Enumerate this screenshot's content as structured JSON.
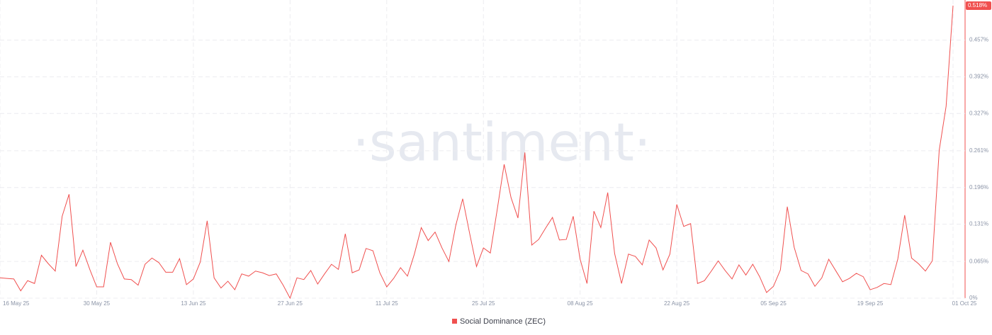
{
  "chart_data": {
    "type": "line",
    "watermark": "·santiment·",
    "x": [
      "2025-05-16",
      "2025-05-17",
      "2025-05-18",
      "2025-05-19",
      "2025-05-20",
      "2025-05-21",
      "2025-05-22",
      "2025-05-23",
      "2025-05-24",
      "2025-05-25",
      "2025-05-26",
      "2025-05-27",
      "2025-05-28",
      "2025-05-29",
      "2025-05-30",
      "2025-05-31",
      "2025-06-01",
      "2025-06-02",
      "2025-06-03",
      "2025-06-04",
      "2025-06-05",
      "2025-06-06",
      "2025-06-07",
      "2025-06-08",
      "2025-06-09",
      "2025-06-10",
      "2025-06-11",
      "2025-06-12",
      "2025-06-13",
      "2025-06-14",
      "2025-06-15",
      "2025-06-16",
      "2025-06-17",
      "2025-06-18",
      "2025-06-19",
      "2025-06-20",
      "2025-06-21",
      "2025-06-22",
      "2025-06-23",
      "2025-06-24",
      "2025-06-25",
      "2025-06-26",
      "2025-06-27",
      "2025-06-28",
      "2025-06-29",
      "2025-06-30",
      "2025-07-01",
      "2025-07-02",
      "2025-07-03",
      "2025-07-04",
      "2025-07-05",
      "2025-07-06",
      "2025-07-07",
      "2025-07-08",
      "2025-07-09",
      "2025-07-10",
      "2025-07-11",
      "2025-07-12",
      "2025-07-13",
      "2025-07-14",
      "2025-07-15",
      "2025-07-16",
      "2025-07-17",
      "2025-07-18",
      "2025-07-19",
      "2025-07-20",
      "2025-07-21",
      "2025-07-22",
      "2025-07-23",
      "2025-07-24",
      "2025-07-25",
      "2025-07-26",
      "2025-07-27",
      "2025-07-28",
      "2025-07-29",
      "2025-07-30",
      "2025-07-31",
      "2025-08-01",
      "2025-08-02",
      "2025-08-03",
      "2025-08-04",
      "2025-08-05",
      "2025-08-06",
      "2025-08-07",
      "2025-08-08",
      "2025-08-09",
      "2025-08-10",
      "2025-08-11",
      "2025-08-12",
      "2025-08-13",
      "2025-08-14",
      "2025-08-15",
      "2025-08-16",
      "2025-08-17",
      "2025-08-18",
      "2025-08-19",
      "2025-08-20",
      "2025-08-21",
      "2025-08-22",
      "2025-08-23",
      "2025-08-24",
      "2025-08-25",
      "2025-08-26",
      "2025-08-27",
      "2025-08-28",
      "2025-08-29",
      "2025-08-30",
      "2025-08-31",
      "2025-09-01",
      "2025-09-02",
      "2025-09-03",
      "2025-09-04",
      "2025-09-05",
      "2025-09-06",
      "2025-09-07",
      "2025-09-08",
      "2025-09-09",
      "2025-09-10",
      "2025-09-11",
      "2025-09-12",
      "2025-09-13",
      "2025-09-14",
      "2025-09-15",
      "2025-09-16",
      "2025-09-17",
      "2025-09-18",
      "2025-09-19",
      "2025-09-20",
      "2025-09-21",
      "2025-09-22",
      "2025-09-23",
      "2025-09-24",
      "2025-09-25",
      "2025-09-26",
      "2025-09-27",
      "2025-09-28",
      "2025-09-29",
      "2025-09-30",
      "2025-10-01"
    ],
    "series": [
      {
        "name": "Social Dominance (ZEC)",
        "color": "#f0504f",
        "values": [
          0.036,
          0.035,
          0.034,
          0.013,
          0.031,
          0.026,
          0.076,
          0.061,
          0.048,
          0.145,
          0.184,
          0.056,
          0.085,
          0.051,
          0.02,
          0.02,
          0.099,
          0.061,
          0.034,
          0.033,
          0.023,
          0.06,
          0.071,
          0.063,
          0.046,
          0.046,
          0.07,
          0.024,
          0.034,
          0.064,
          0.137,
          0.036,
          0.018,
          0.03,
          0.015,
          0.043,
          0.039,
          0.048,
          0.045,
          0.04,
          0.043,
          0.023,
          0.0,
          0.036,
          0.033,
          0.049,
          0.025,
          0.043,
          0.06,
          0.051,
          0.114,
          0.045,
          0.05,
          0.088,
          0.084,
          0.045,
          0.02,
          0.035,
          0.054,
          0.039,
          0.078,
          0.125,
          0.102,
          0.117,
          0.089,
          0.065,
          0.129,
          0.176,
          0.115,
          0.056,
          0.089,
          0.08,
          0.157,
          0.237,
          0.178,
          0.142,
          0.258,
          0.094,
          0.104,
          0.124,
          0.143,
          0.103,
          0.104,
          0.145,
          0.069,
          0.026,
          0.154,
          0.125,
          0.187,
          0.079,
          0.026,
          0.078,
          0.074,
          0.059,
          0.103,
          0.089,
          0.05,
          0.078,
          0.166,
          0.127,
          0.132,
          0.026,
          0.031,
          0.048,
          0.066,
          0.049,
          0.034,
          0.059,
          0.041,
          0.06,
          0.038,
          0.01,
          0.021,
          0.05,
          0.162,
          0.09,
          0.049,
          0.043,
          0.021,
          0.036,
          0.069,
          0.049,
          0.029,
          0.035,
          0.044,
          0.038,
          0.015,
          0.019,
          0.026,
          0.024,
          0.069,
          0.147,
          0.071,
          0.061,
          0.048,
          0.066,
          0.262,
          0.34,
          0.518
        ],
        "value_labels": [
          null,
          null,
          null,
          null,
          null,
          null,
          null,
          null,
          null,
          null,
          null,
          null,
          null,
          null,
          null,
          null,
          null,
          null,
          null,
          null,
          null,
          null,
          null,
          null,
          null,
          null,
          null,
          null,
          null,
          null,
          null,
          null,
          null,
          null,
          null,
          null,
          null,
          null,
          null,
          null,
          null,
          null,
          null,
          null,
          null,
          null,
          null,
          null,
          null,
          null,
          null,
          null,
          null,
          null,
          null,
          null,
          null,
          null,
          null,
          null,
          null,
          null,
          null,
          null,
          null,
          null,
          null,
          null,
          null,
          null,
          null,
          null,
          null,
          null,
          null,
          null,
          null,
          null,
          null,
          null,
          null,
          null,
          null,
          null,
          null,
          null,
          null,
          null,
          null,
          null,
          null,
          null,
          null,
          null,
          null,
          null,
          null,
          null,
          null,
          null,
          null,
          null,
          null,
          null,
          null,
          null,
          null,
          null,
          null,
          null,
          null,
          null,
          null,
          null,
          null,
          null,
          null,
          null,
          null,
          null,
          null,
          null,
          null,
          null,
          null,
          null,
          null,
          null,
          null,
          null,
          null,
          null,
          null,
          null,
          null,
          null,
          null,
          null,
          "0.518%"
        ]
      }
    ],
    "xlim": [
      "2025-05-16",
      "2025-10-01"
    ],
    "xticks": [
      {
        "value": "2025-05-16",
        "label": "16 May 25"
      },
      {
        "value": "2025-05-30",
        "label": "30 May 25"
      },
      {
        "value": "2025-06-13",
        "label": "13 Jun 25"
      },
      {
        "value": "2025-06-27",
        "label": "27 Jun 25"
      },
      {
        "value": "2025-07-11",
        "label": "11 Jul 25"
      },
      {
        "value": "2025-07-25",
        "label": "25 Jul 25"
      },
      {
        "value": "2025-08-08",
        "label": "08 Aug 25"
      },
      {
        "value": "2025-08-22",
        "label": "22 Aug 25"
      },
      {
        "value": "2025-09-05",
        "label": "05 Sep 25"
      },
      {
        "value": "2025-09-19",
        "label": "19 Sep 25"
      },
      {
        "value": "2025-10-01",
        "label": "01 Oct 25"
      }
    ],
    "ylim": [
      0,
      0.528
    ],
    "yticks": [
      {
        "value": 0,
        "label": "0%"
      },
      {
        "value": 0.065,
        "label": "0.065%"
      },
      {
        "value": 0.131,
        "label": "0.131%"
      },
      {
        "value": 0.196,
        "label": "0.196%"
      },
      {
        "value": 0.261,
        "label": "0.261%"
      },
      {
        "value": 0.327,
        "label": "0.327%"
      },
      {
        "value": 0.392,
        "label": "0.392%"
      },
      {
        "value": 0.457,
        "label": "0.457%"
      }
    ],
    "grid": true,
    "legend": "bottom"
  }
}
